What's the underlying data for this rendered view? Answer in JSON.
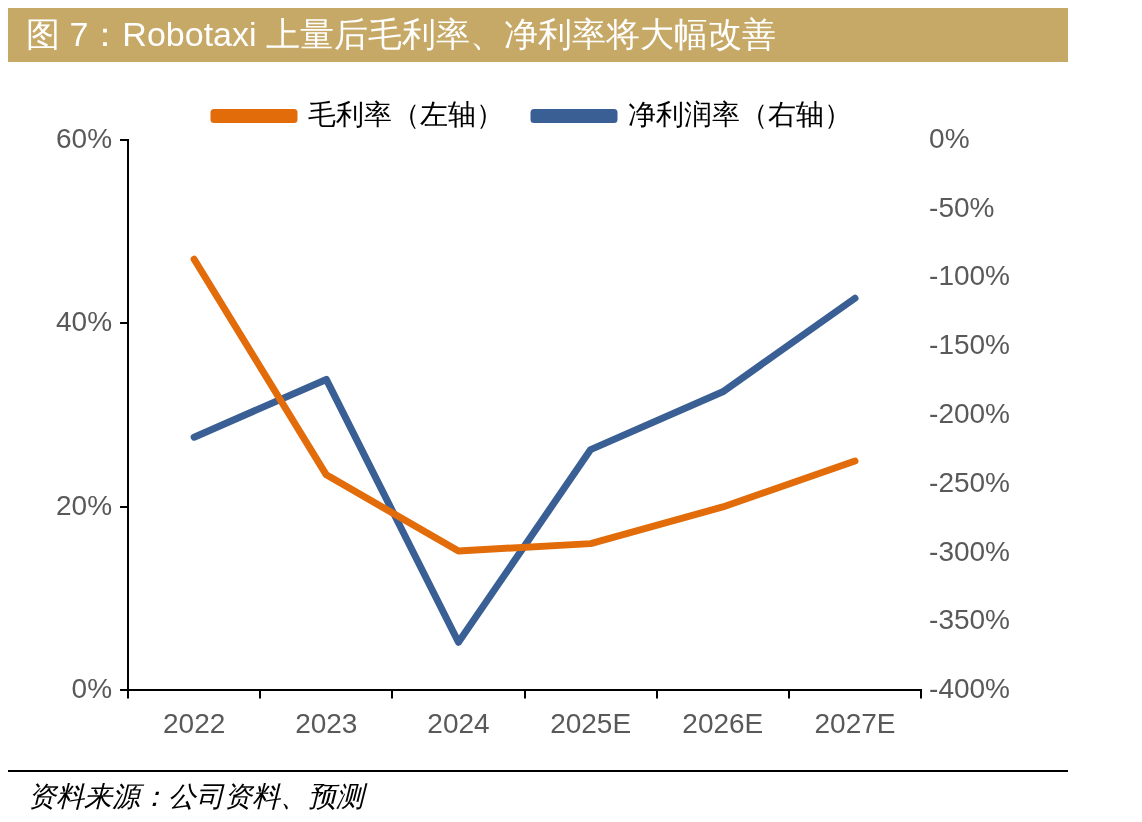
{
  "chart_data": {
    "type": "line",
    "title": "图 7：Robotaxi 上量后毛利率、净利率将大幅改善",
    "categories": [
      "2022",
      "2023",
      "2024",
      "2025E",
      "2026E",
      "2027E"
    ],
    "series": [
      {
        "name": "毛利率（左轴）",
        "color": "#e36c0a",
        "values": [
          47,
          23.5,
          15.2,
          16,
          20,
          25
        ]
      },
      {
        "name": "净利润率（右轴）",
        "color": "#3a5f94",
        "values": [
          -216,
          -174,
          -365,
          -225,
          -183,
          -115
        ],
        "axis": "y2"
      }
    ],
    "ylim": [
      0,
      60
    ],
    "yticks": [
      {
        "value": 0,
        "label": "0%"
      },
      {
        "value": 20,
        "label": "20%"
      },
      {
        "value": 40,
        "label": "40%"
      },
      {
        "value": 60,
        "label": "60%"
      }
    ],
    "y2lim": [
      -400,
      0
    ],
    "y2ticks": [
      {
        "value": 0,
        "label": "0%"
      },
      {
        "value": -50,
        "label": "-50%"
      },
      {
        "value": -100,
        "label": "-100%"
      },
      {
        "value": -150,
        "label": "-150%"
      },
      {
        "value": -200,
        "label": "-200%"
      },
      {
        "value": -250,
        "label": "-250%"
      },
      {
        "value": -300,
        "label": "-300%"
      },
      {
        "value": -350,
        "label": "-350%"
      },
      {
        "value": -400,
        "label": "-400%"
      }
    ],
    "legend": "top",
    "grid": false,
    "marker": "none",
    "annotations": [
      "资料来源：公司资料、预测"
    ]
  }
}
